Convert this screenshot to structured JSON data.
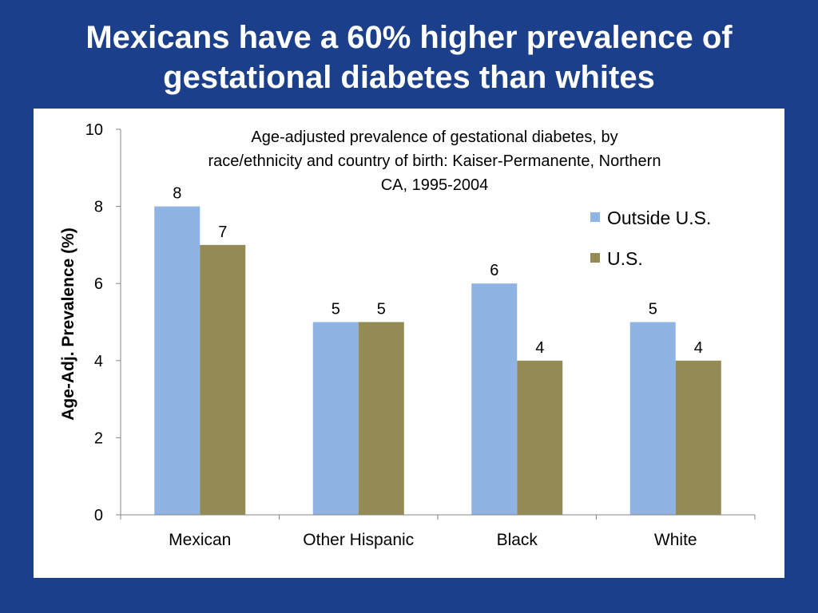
{
  "slide": {
    "title_line1": "Mexicans have a 60% higher prevalence of",
    "title_line2": "gestational diabetes than whites"
  },
  "chart_data": {
    "type": "bar",
    "title_lines": [
      "Age-adjusted prevalence of gestational diabetes, by",
      "race/ethnicity and country of birth: Kaiser-Permanente, Northern",
      "CA, 1995-2004"
    ],
    "xlabel": "",
    "ylabel": "Age-Adj. Prevalence (%)",
    "ylim": [
      0,
      10
    ],
    "yticks": [
      0,
      2,
      4,
      6,
      8,
      10
    ],
    "categories": [
      "Mexican",
      "Other Hispanic",
      "Black",
      "White"
    ],
    "series": [
      {
        "name": "Outside U.S.",
        "values": [
          8,
          5,
          6,
          5
        ],
        "color": "#8fb4e3"
      },
      {
        "name": "U.S.",
        "values": [
          7,
          5,
          4,
          4
        ],
        "color": "#948a54"
      }
    ],
    "data_labels": true,
    "grid": false,
    "legend": "right"
  }
}
